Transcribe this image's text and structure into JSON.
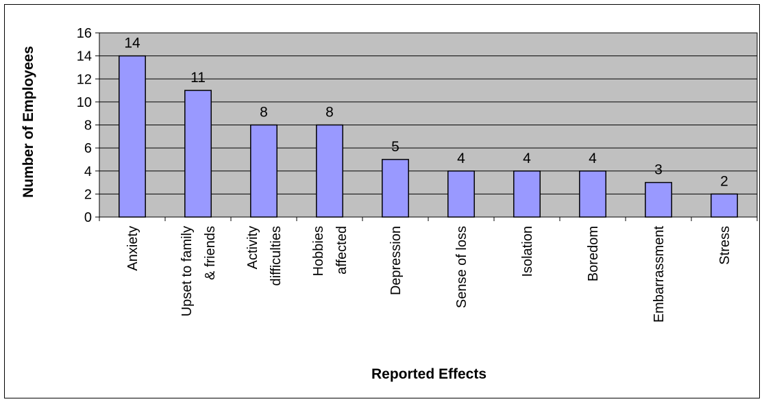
{
  "chart_data": {
    "type": "bar",
    "categories": [
      [
        "Anxiety"
      ],
      [
        "Upset to family",
        "& friends"
      ],
      [
        "Activity",
        "difficulties"
      ],
      [
        "Hobbies",
        "affected"
      ],
      [
        "Depression"
      ],
      [
        "Sense of loss"
      ],
      [
        "Isolation"
      ],
      [
        "Boredom"
      ],
      [
        "Embarrassment"
      ],
      [
        "Stress"
      ]
    ],
    "values": [
      14,
      11,
      8,
      8,
      5,
      4,
      4,
      4,
      3,
      2
    ],
    "title": "",
    "xlabel": "Reported Effects",
    "ylabel": "Number of Employees",
    "ylim": [
      0,
      16
    ],
    "yticks": [
      0,
      2,
      4,
      6,
      8,
      10,
      12,
      14,
      16
    ],
    "grid": true,
    "legend": "none",
    "data_labels": true,
    "colors": {
      "bar_fill": "#9999ff",
      "bar_stroke": "#000000",
      "plot_background": "#c0c0c0",
      "gridline": "#000000",
      "page_background": "#ffffff"
    }
  }
}
